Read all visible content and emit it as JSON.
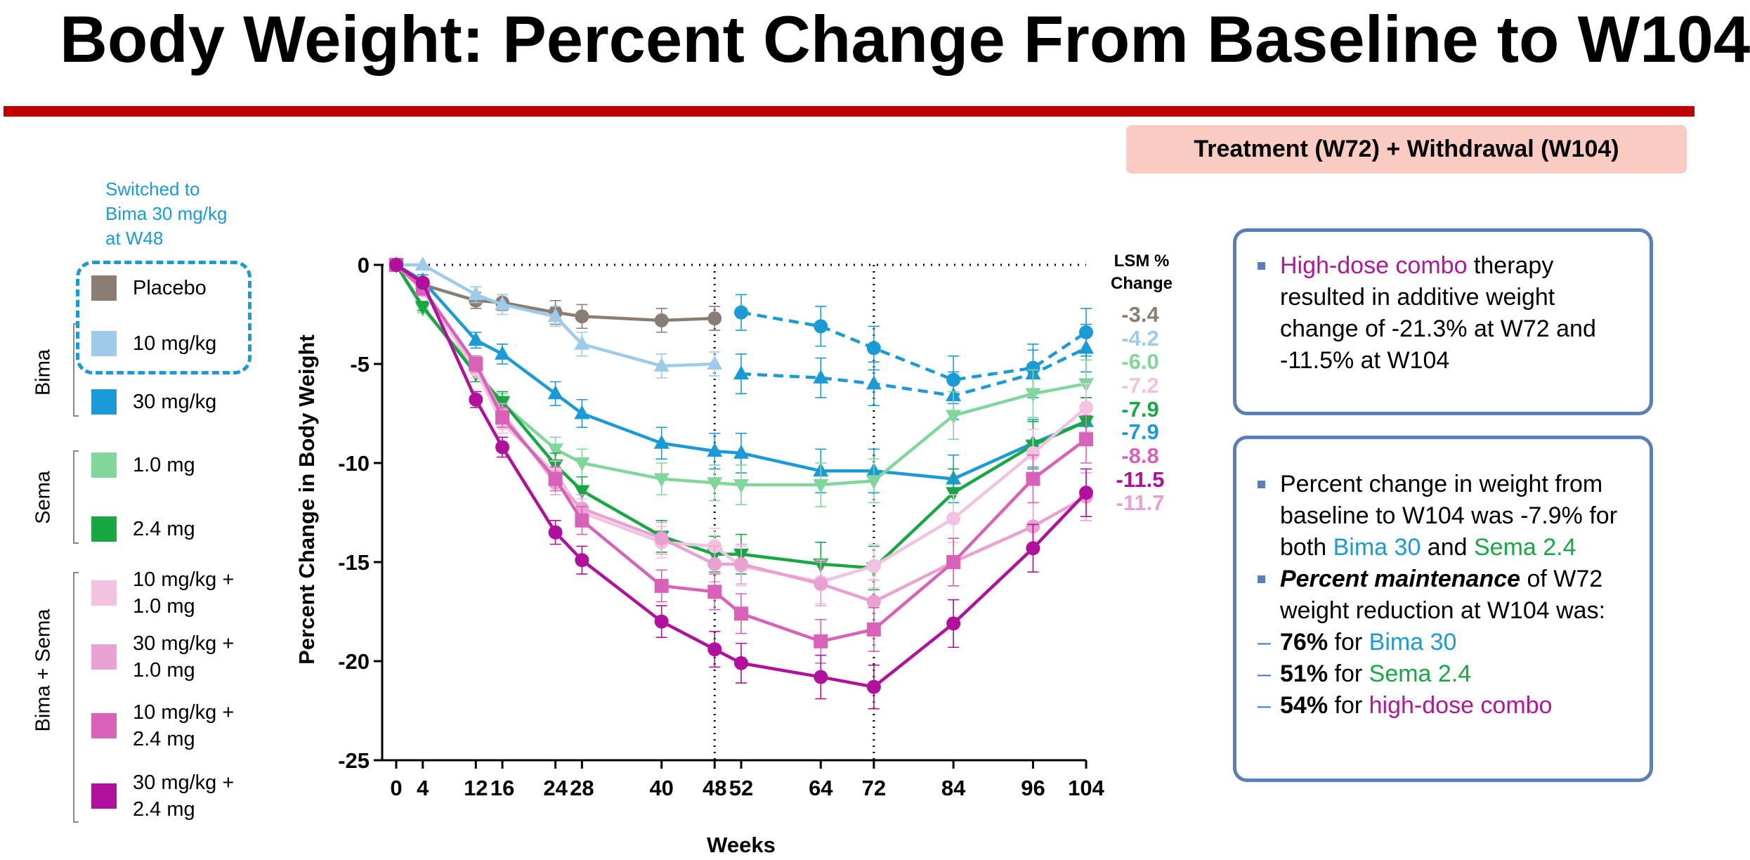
{
  "title": "Body Weight: Percent Change From Baseline to W104",
  "banner": "Treatment (W72) + Withdrawal (W104)",
  "chart_data": {
    "type": "line",
    "x_label": "Weeks",
    "y_label": "Percent Change in Body Weight",
    "x": [
      0,
      4,
      12,
      16,
      24,
      28,
      40,
      48,
      52,
      64,
      72,
      84,
      96,
      104
    ],
    "xlim": [
      0,
      104
    ],
    "xticks": [
      0,
      4,
      12,
      16,
      24,
      28,
      40,
      48,
      52,
      64,
      72,
      84,
      96,
      104
    ],
    "ylim": [
      -25,
      0
    ],
    "yticks": [
      0,
      -5,
      -10,
      -15,
      -20,
      -25
    ],
    "reference_lines": {
      "x": [
        48,
        72
      ],
      "y": [
        0
      ]
    },
    "switch_note": "Switched to Bima 30 mg/kg at W48",
    "legend_groups": [
      "Bima",
      "Sema",
      "Bima + Sema"
    ],
    "lsm_title": "LSM % Change",
    "lsm": [
      {
        "value": -3.4,
        "color": "#8a7d74"
      },
      {
        "value": -4.2,
        "color": "#9dcbe9"
      },
      {
        "value": -6,
        "label": "-6.0",
        "color": "#80d69b"
      },
      {
        "value": -7.2,
        "color": "#f2c3e0"
      },
      {
        "value": -7.9,
        "color": "#17a844"
      },
      {
        "value": -7.9,
        "color": "#1a9bd7"
      },
      {
        "value": -8.8,
        "color": "#d862b8"
      },
      {
        "value": -11.5,
        "color": "#b0109b"
      },
      {
        "value": -11.7,
        "color": "#e9a1d2"
      }
    ],
    "series": [
      {
        "name": "Placebo",
        "color": "#8a7d74",
        "marker": "circle",
        "values": [
          0,
          -1.0,
          -1.8,
          -1.9,
          -2.4,
          -2.6,
          -2.8,
          -2.7,
          null,
          null,
          null,
          null,
          null,
          null
        ],
        "errors": [
          0,
          0.3,
          0.4,
          0.4,
          0.6,
          0.6,
          0.6,
          0.6,
          null,
          null,
          null,
          null,
          null,
          null
        ]
      },
      {
        "color": "#1a9bd7",
        "marker": "circle",
        "dashed": true,
        "values": [
          null,
          null,
          null,
          null,
          null,
          null,
          null,
          null,
          -2.4,
          -3.1,
          -4.2,
          -5.8,
          -5.2,
          -3.4
        ],
        "errors": [
          null,
          null,
          null,
          null,
          null,
          null,
          null,
          null,
          0.9,
          1.0,
          1.1,
          1.2,
          1.2,
          1.2
        ]
      },
      {
        "name": "10 mg/kg",
        "color": "#9dcbe9",
        "marker": "triangle",
        "values": [
          0,
          0,
          -1.5,
          -2.0,
          -2.6,
          -4.0,
          -5.1,
          -5.0,
          null,
          null,
          null,
          null,
          null,
          null
        ],
        "errors": [
          0,
          0,
          0.4,
          0.5,
          0.5,
          0.6,
          0.6,
          0.6,
          null,
          null,
          null,
          null,
          null,
          null
        ]
      },
      {
        "color": "#1a9bd7",
        "marker": "triangle",
        "dashed": true,
        "values": [
          null,
          null,
          null,
          null,
          null,
          null,
          null,
          null,
          -5.5,
          -5.7,
          -6.0,
          -6.6,
          -5.5,
          -4.2
        ],
        "errors": [
          null,
          null,
          null,
          null,
          null,
          null,
          null,
          null,
          1.0,
          1.0,
          1.1,
          1.2,
          1.2,
          1.2
        ]
      },
      {
        "name": "30 mg/kg",
        "color": "#1a9bd7",
        "marker": "triangle",
        "values": [
          0,
          -0.8,
          -3.8,
          -4.5,
          -6.5,
          -7.5,
          -9.0,
          -9.4,
          -9.5,
          -10.4,
          -10.4,
          -10.8,
          -9.0,
          -7.9
        ],
        "errors": [
          0,
          0.3,
          0.4,
          0.5,
          0.6,
          0.7,
          0.8,
          0.9,
          1.0,
          1.1,
          1.1,
          1.2,
          1.2,
          1.2
        ]
      },
      {
        "name": "1.0 mg",
        "color": "#80d69b",
        "marker": "triangle-down",
        "values": [
          0,
          -2.2,
          -5.3,
          -7.0,
          -9.3,
          -10.0,
          -10.8,
          -11.0,
          -11.1,
          -11.1,
          -10.9,
          -7.6,
          -6.5,
          -6.0
        ],
        "errors": [
          0,
          0.2,
          0.4,
          0.5,
          0.6,
          0.7,
          0.8,
          0.9,
          1.0,
          1.1,
          1.1,
          1.2,
          1.2,
          1.2
        ]
      },
      {
        "name": "2.4 mg",
        "color": "#17a844",
        "marker": "triangle-down",
        "values": [
          0,
          -2.1,
          -5.5,
          -6.9,
          -10.1,
          -11.4,
          -13.7,
          -14.6,
          -14.6,
          -15.1,
          -15.3,
          -11.5,
          -9.1,
          -7.9
        ],
        "errors": [
          0,
          0.2,
          0.4,
          0.5,
          0.6,
          0.7,
          0.8,
          0.9,
          1.0,
          1.1,
          1.1,
          1.2,
          1.2,
          1.2
        ]
      },
      {
        "name": "10 mg/kg + 1.0 mg",
        "color": "#f2c3e0",
        "marker": "circle",
        "values": [
          0,
          -1.3,
          -5.3,
          -8.0,
          -10.5,
          -12.5,
          -14.0,
          -14.2,
          -15.2,
          -16.0,
          -15.2,
          -12.8,
          -9.5,
          -7.2
        ],
        "errors": [
          0,
          0.2,
          0.4,
          0.5,
          0.6,
          0.7,
          0.8,
          0.9,
          1.0,
          1.1,
          1.1,
          1.2,
          1.2,
          1.2
        ]
      },
      {
        "name": "30 mg/kg + 1.0 mg",
        "color": "#e9a1d2",
        "marker": "circle",
        "values": [
          0,
          -1.2,
          -5.0,
          -7.5,
          -11.0,
          -12.3,
          -13.8,
          -15.1,
          -15.1,
          -16.1,
          -17.0,
          -15.0,
          -13.2,
          -11.7
        ],
        "errors": [
          0,
          0.2,
          0.4,
          0.5,
          0.6,
          0.7,
          0.8,
          0.9,
          1.0,
          1.1,
          1.1,
          1.2,
          1.2,
          1.2
        ]
      },
      {
        "name": "10 mg/kg + 2.4 mg",
        "color": "#d862b8",
        "marker": "square",
        "values": [
          0,
          -1.2,
          -5.0,
          -7.7,
          -10.8,
          -12.9,
          -16.2,
          -16.5,
          -17.6,
          -19.0,
          -18.4,
          -15.0,
          -10.8,
          -8.8
        ],
        "errors": [
          0,
          0.2,
          0.4,
          0.5,
          0.6,
          0.7,
          0.8,
          0.9,
          1.0,
          1.1,
          1.1,
          1.2,
          1.2,
          1.2
        ]
      },
      {
        "name": "30 mg/kg + 2.4 mg",
        "color": "#b0109b",
        "marker": "circle",
        "values": [
          0,
          -0.9,
          -6.8,
          -9.2,
          -13.5,
          -14.9,
          -18.0,
          -19.4,
          -20.1,
          -20.8,
          -21.3,
          -18.1,
          -14.3,
          -11.5
        ],
        "errors": [
          0,
          0.2,
          0.4,
          0.5,
          0.6,
          0.7,
          0.8,
          0.9,
          1.0,
          1.1,
          1.1,
          1.2,
          1.2,
          1.2
        ]
      }
    ]
  },
  "notes": [
    {
      "bullets": [
        {
          "level": 1,
          "segments": [
            {
              "text": "High-dose combo",
              "color": "#b0179a"
            },
            {
              "text": " therapy resulted in additive weight change of -21.3% at W72 and -11.5% at W104"
            }
          ]
        }
      ]
    },
    {
      "bullets": [
        {
          "level": 1,
          "segments": [
            {
              "text": "Percent change in weight from baseline to W104 was -7.9% for both "
            },
            {
              "text": "Bima 30",
              "color": "#1a9bd7"
            },
            {
              "text": " and "
            },
            {
              "text": "Sema 2.4",
              "color": "#17a844"
            }
          ]
        },
        {
          "level": 1,
          "segments": [
            {
              "text": "Percent maintenance",
              "style": "bold-italic"
            },
            {
              "text": " of W72 weight reduction at W104 was:"
            }
          ]
        },
        {
          "level": 2,
          "segments": [
            {
              "text": "76%",
              "style": "bold"
            },
            {
              "text": " for "
            },
            {
              "text": "Bima 30",
              "color": "#1a9bd7"
            }
          ]
        },
        {
          "level": 2,
          "segments": [
            {
              "text": "51%",
              "style": "bold"
            },
            {
              "text": " for "
            },
            {
              "text": "Sema 2.4",
              "color": "#17a844"
            }
          ]
        },
        {
          "level": 2,
          "segments": [
            {
              "text": "54%",
              "style": "bold"
            },
            {
              "text": " for "
            },
            {
              "text": "high-dose combo",
              "color": "#b0179a"
            }
          ]
        }
      ]
    }
  ]
}
